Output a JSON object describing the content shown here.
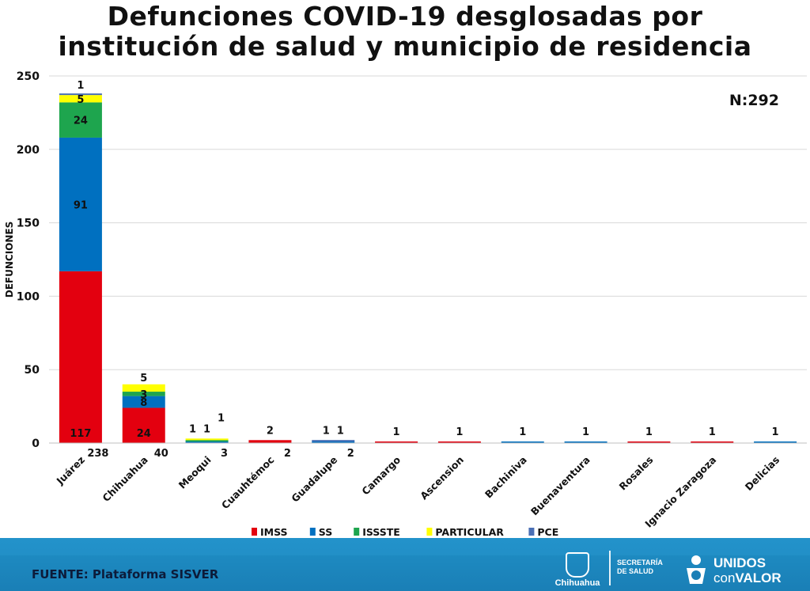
{
  "title_lines": [
    "Defunciones COVID-19 desglosadas por",
    "institución de salud y municipio de residencia"
  ],
  "n_label": "N:292",
  "footer": {
    "fuente": "FUENTE: Plataforma SISVER",
    "logo_chihuahua": "Chihuahua",
    "secretaria_line1": "SECRETARÍA",
    "secretaria_line2": "DE SALUD",
    "unidos_line1": "UNIDOS",
    "unidos_line2_a": "con",
    "unidos_line2_b": "VALOR"
  },
  "chart_data": {
    "type": "bar",
    "stacked": true,
    "ylabel": "DEFUNCIONES",
    "xlabel": "",
    "ylim": [
      0,
      250
    ],
    "yticks": [
      0,
      50,
      100,
      150,
      200,
      250
    ],
    "grid": true,
    "legend_position": "bottom",
    "categories": [
      "Juárez",
      "Chihuahua",
      "Meoqui",
      "Cuauhtémoc",
      "Guadalupe",
      "Camargo",
      "Ascension",
      "Bachiniva",
      "Buenaventura",
      "Rosales",
      "Ignacio Zaragoza",
      "Delicias"
    ],
    "totals": [
      "238",
      "40",
      "3",
      "2",
      "2",
      "",
      "",
      "",
      "",
      "",
      "",
      ""
    ],
    "series": [
      {
        "name": "IMSS",
        "color": "#e3000f",
        "values": [
          117,
          24,
          0,
          2,
          0,
          1,
          1,
          0,
          0,
          1,
          1,
          0
        ]
      },
      {
        "name": "SS",
        "color": "#0070c0",
        "values": [
          91,
          8,
          1,
          0,
          1,
          0,
          0,
          1,
          1,
          0,
          0,
          1
        ]
      },
      {
        "name": "ISSSTE",
        "color": "#1ea54e",
        "values": [
          24,
          3,
          1,
          0,
          0,
          0,
          0,
          0,
          0,
          0,
          0,
          0
        ]
      },
      {
        "name": "PARTICULAR",
        "color": "#ffff00",
        "values": [
          5,
          5,
          1,
          0,
          0,
          0,
          0,
          0,
          0,
          0,
          0,
          0
        ]
      },
      {
        "name": "PCE",
        "color": "#4a6fb5",
        "values": [
          1,
          0,
          0,
          0,
          1,
          0,
          0,
          0,
          0,
          0,
          0,
          0
        ]
      }
    ]
  }
}
